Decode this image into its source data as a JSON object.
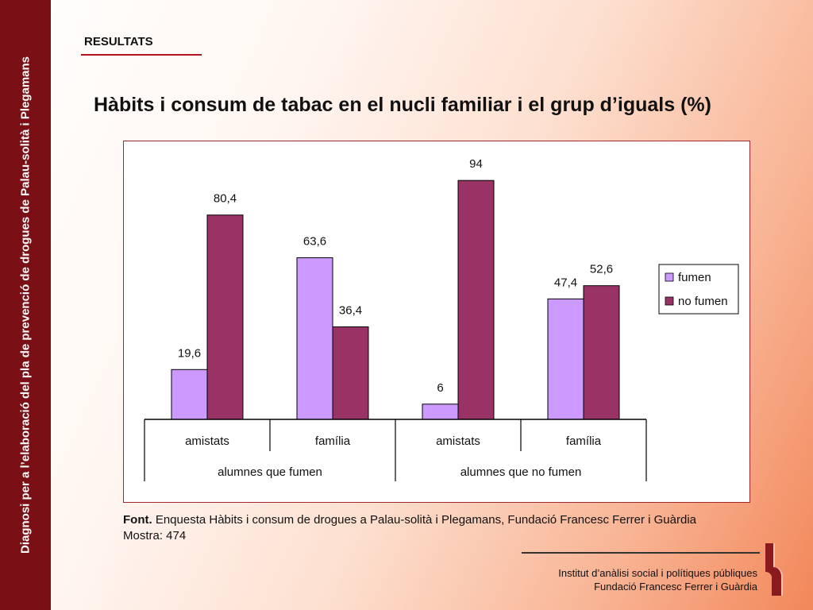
{
  "side_band": {
    "text": "Diagnosi per a l’elaboració del pla de prevenció de drogues de Palau-solità i Plegamans"
  },
  "header": {
    "section": "RESULTATS",
    "title": "Hàbits i consum de tabac en el nucli familiar i el grup d’iguals (%)"
  },
  "source": {
    "prefix": "Font.",
    "text": " Enquesta Hàbits i consum de drogues a Palau-solità i Plegamans, Fundació Francesc Ferrer i Guàrdia",
    "sample": "Mostra: 474"
  },
  "footer": {
    "line1": "Institut d’anàlisi social i polítiques públiques",
    "line2": "Fundació Francesc Ferrer i Guàrdia",
    "logo_icon": "institute-logo-icon"
  },
  "colors": {
    "band": "#7a1015",
    "fumen": "#cc99ff",
    "no_fumen": "#993366",
    "frame": "#a0282c"
  },
  "chart_data": {
    "type": "bar",
    "title": "",
    "categories": [
      "amistats",
      "família",
      "amistats",
      "família"
    ],
    "groups": [
      {
        "label": "alumnes que fumen",
        "span": [
          0,
          1
        ]
      },
      {
        "label": "alumnes que no fumen",
        "span": [
          2,
          3
        ]
      }
    ],
    "series": [
      {
        "name": "fumen",
        "values": [
          19.6,
          63.6,
          6,
          47.4
        ],
        "labels": [
          "19,6",
          "63,6",
          "6",
          "47,4"
        ],
        "color": "#cc99ff"
      },
      {
        "name": "no fumen",
        "values": [
          80.4,
          36.4,
          94,
          52.6
        ],
        "labels": [
          "80,4",
          "36,4",
          "94",
          "52,6"
        ],
        "color": "#993366"
      }
    ],
    "ylim": [
      0,
      100
    ],
    "grid": false,
    "legend": "right"
  }
}
